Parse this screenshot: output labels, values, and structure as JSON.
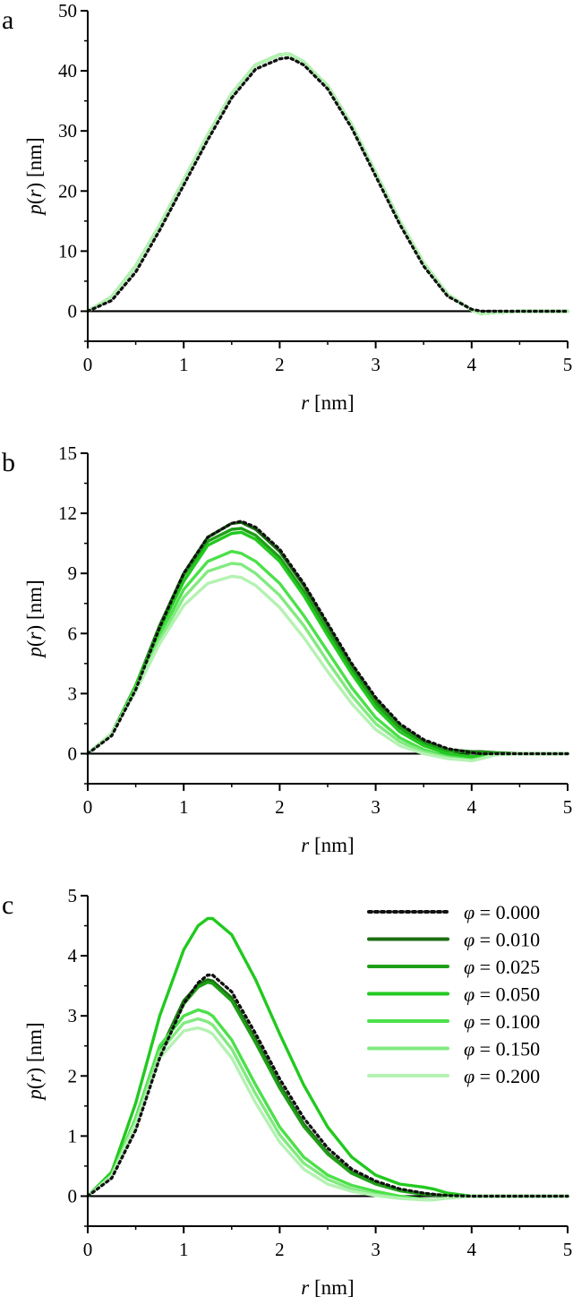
{
  "colors": {
    "phi_0_000": "#111111",
    "phi_0_010": "#1b6e12",
    "phi_0_025": "#1f9e18",
    "phi_0_050": "#22c91f",
    "phi_0_100": "#4ce04a",
    "phi_0_150": "#82ea80",
    "phi_0_200": "#b4f2b2",
    "axis": "#000000"
  },
  "legend": [
    {
      "label": "φ = 0.000",
      "key": "phi_0_000",
      "dashed": true
    },
    {
      "label": "φ = 0.010",
      "key": "phi_0_010",
      "dashed": false
    },
    {
      "label": "φ = 0.025",
      "key": "phi_0_025",
      "dashed": false
    },
    {
      "label": "φ = 0.050",
      "key": "phi_0_050",
      "dashed": false
    },
    {
      "label": "φ = 0.100",
      "key": "phi_0_100",
      "dashed": false
    },
    {
      "label": "φ = 0.150",
      "key": "phi_0_150",
      "dashed": false
    },
    {
      "label": "φ = 0.200",
      "key": "phi_0_200",
      "dashed": false
    }
  ],
  "chart_data": [
    {
      "panel": "a",
      "type": "line",
      "xlabel": "r [nm]",
      "ylabel": "p(r) [nm]",
      "xlim": [
        0,
        5
      ],
      "ylim": [
        -5,
        50
      ],
      "xticks": [
        0,
        1,
        2,
        3,
        4,
        5
      ],
      "yticks": [
        0,
        10,
        20,
        30,
        40,
        50
      ],
      "x": [
        0,
        0.25,
        0.5,
        0.75,
        1,
        1.25,
        1.5,
        1.75,
        2,
        2.1,
        2.25,
        2.5,
        2.75,
        3,
        3.25,
        3.5,
        3.75,
        4,
        4.1,
        4.25,
        4.5,
        4.75,
        5
      ],
      "series": [
        {
          "key": "phi_0_000",
          "values": [
            0,
            1.8,
            6.5,
            13.5,
            21,
            28.5,
            35.5,
            40.3,
            42.0,
            42.2,
            41.0,
            37.0,
            30.5,
            22.5,
            14.5,
            7.5,
            2.5,
            0.3,
            0,
            0,
            0,
            0,
            0
          ]
        },
        {
          "key": "phi_0_010",
          "values": [
            0,
            2.4,
            7.5,
            14.3,
            21.8,
            29.3,
            36.2,
            41.0,
            42.7,
            42.8,
            41.5,
            37.5,
            31.0,
            23.0,
            15.0,
            8.0,
            2.8,
            0.2,
            -0.4,
            -0.2,
            0,
            0,
            0
          ]
        },
        {
          "key": "phi_0_025",
          "values": [
            0,
            2.4,
            7.5,
            14.3,
            21.8,
            29.3,
            36.2,
            41.0,
            42.7,
            42.8,
            41.5,
            37.5,
            31.0,
            23.0,
            15.0,
            8.0,
            2.8,
            0.2,
            -0.4,
            -0.2,
            0,
            0,
            0
          ]
        },
        {
          "key": "phi_0_050",
          "values": [
            0,
            2.4,
            7.5,
            14.3,
            21.8,
            29.3,
            36.2,
            41.0,
            42.7,
            42.8,
            41.5,
            37.5,
            31.0,
            23.0,
            15.0,
            8.0,
            2.8,
            0.2,
            -0.4,
            -0.2,
            0,
            0,
            0
          ]
        },
        {
          "key": "phi_0_100",
          "values": [
            0,
            2.4,
            7.5,
            14.3,
            21.8,
            29.3,
            36.2,
            41.0,
            42.7,
            42.8,
            41.5,
            37.5,
            31.0,
            23.0,
            15.0,
            8.0,
            2.8,
            0.2,
            -0.4,
            -0.2,
            0,
            0,
            0
          ]
        },
        {
          "key": "phi_0_150",
          "values": [
            0,
            2.4,
            7.5,
            14.3,
            21.8,
            29.3,
            36.2,
            41.0,
            42.7,
            42.8,
            41.5,
            37.5,
            31.0,
            23.0,
            15.0,
            8.0,
            2.8,
            0.2,
            -0.4,
            -0.2,
            0,
            0,
            0
          ]
        },
        {
          "key": "phi_0_200",
          "values": [
            0,
            2.4,
            7.5,
            14.3,
            21.8,
            29.3,
            36.2,
            41.0,
            42.7,
            42.8,
            41.5,
            37.5,
            31.0,
            23.0,
            15.0,
            8.0,
            2.8,
            0.2,
            -0.4,
            -0.2,
            0,
            0,
            0
          ]
        }
      ]
    },
    {
      "panel": "b",
      "type": "line",
      "xlabel": "r [nm]",
      "ylabel": "p(r) [nm]",
      "xlim": [
        0,
        5
      ],
      "ylim": [
        -1.5,
        15
      ],
      "xticks": [
        0,
        1,
        2,
        3,
        4,
        5
      ],
      "yticks": [
        0,
        3,
        6,
        9,
        12,
        15
      ],
      "x": [
        0,
        0.25,
        0.5,
        0.75,
        1,
        1.25,
        1.5,
        1.6,
        1.75,
        2,
        2.25,
        2.5,
        2.75,
        3,
        3.25,
        3.5,
        3.75,
        4,
        4.1,
        4.25,
        4.5,
        4.75,
        5
      ],
      "series": [
        {
          "key": "phi_0_000",
          "values": [
            0,
            0.9,
            3.2,
            6.3,
            9.0,
            10.8,
            11.5,
            11.6,
            11.3,
            10.2,
            8.5,
            6.5,
            4.5,
            2.8,
            1.5,
            0.7,
            0.25,
            0.05,
            0,
            0,
            0,
            0,
            0
          ]
        },
        {
          "key": "phi_0_010",
          "values": [
            0,
            1.0,
            3.4,
            6.4,
            9.0,
            10.8,
            11.5,
            11.55,
            11.2,
            10.1,
            8.4,
            6.4,
            4.4,
            2.7,
            1.4,
            0.6,
            0.2,
            0.1,
            0.1,
            0.05,
            0,
            0,
            0
          ]
        },
        {
          "key": "phi_0_025",
          "values": [
            0,
            1.0,
            3.4,
            6.3,
            8.9,
            10.6,
            11.2,
            11.25,
            10.9,
            9.8,
            8.1,
            6.1,
            4.2,
            2.5,
            1.3,
            0.5,
            0.15,
            0.05,
            0.05,
            0.03,
            0,
            0,
            0
          ]
        },
        {
          "key": "phi_0_050",
          "values": [
            0,
            1.0,
            3.4,
            6.2,
            8.6,
            10.4,
            11.0,
            11.05,
            10.7,
            9.6,
            7.9,
            5.9,
            4.0,
            2.3,
            1.1,
            0.4,
            0.0,
            -0.15,
            -0.1,
            -0.03,
            0,
            0,
            0
          ]
        },
        {
          "key": "phi_0_100",
          "values": [
            0,
            1.0,
            3.3,
            5.9,
            8.2,
            9.6,
            10.1,
            10.0,
            9.6,
            8.5,
            6.9,
            5.1,
            3.3,
            1.8,
            0.8,
            0.2,
            -0.15,
            -0.3,
            -0.2,
            -0.05,
            0,
            0,
            0
          ]
        },
        {
          "key": "phi_0_150",
          "values": [
            0,
            1.0,
            3.2,
            5.7,
            7.8,
            9.1,
            9.5,
            9.45,
            9.0,
            7.9,
            6.4,
            4.6,
            2.9,
            1.5,
            0.6,
            0.1,
            -0.2,
            -0.35,
            -0.25,
            -0.05,
            0,
            0,
            0
          ]
        },
        {
          "key": "phi_0_200",
          "values": [
            0,
            1.0,
            3.1,
            5.5,
            7.4,
            8.5,
            8.85,
            8.8,
            8.4,
            7.3,
            5.8,
            4.1,
            2.5,
            1.2,
            0.4,
            0.0,
            -0.25,
            -0.35,
            -0.25,
            -0.05,
            0,
            0,
            0
          ]
        }
      ]
    },
    {
      "panel": "c",
      "type": "line",
      "xlabel": "r [nm]",
      "ylabel": "p(r) [nm]",
      "xlim": [
        0,
        5
      ],
      "ylim": [
        -0.5,
        5
      ],
      "xticks": [
        0,
        1,
        2,
        3,
        4,
        5
      ],
      "yticks": [
        0,
        1,
        2,
        3,
        4,
        5
      ],
      "x": [
        0,
        0.25,
        0.5,
        0.75,
        1,
        1.15,
        1.25,
        1.3,
        1.5,
        1.75,
        2,
        2.25,
        2.5,
        2.75,
        3,
        3.25,
        3.5,
        3.6,
        3.75,
        4,
        4.25,
        4.5,
        4.75,
        5
      ],
      "series": [
        {
          "key": "phi_0_000",
          "values": [
            0,
            0.3,
            1.1,
            2.3,
            3.2,
            3.55,
            3.68,
            3.68,
            3.4,
            2.7,
            1.95,
            1.3,
            0.8,
            0.45,
            0.25,
            0.12,
            0.05,
            0.03,
            0.01,
            0,
            0,
            0,
            0,
            0
          ]
        },
        {
          "key": "phi_0_010",
          "values": [
            0,
            0.35,
            1.25,
            2.4,
            3.25,
            3.52,
            3.6,
            3.58,
            3.3,
            2.6,
            1.85,
            1.2,
            0.72,
            0.4,
            0.22,
            0.1,
            0.04,
            0.02,
            0.01,
            0,
            0,
            0,
            0,
            0
          ]
        },
        {
          "key": "phi_0_025",
          "values": [
            0,
            0.35,
            1.25,
            2.38,
            3.2,
            3.48,
            3.56,
            3.54,
            3.25,
            2.55,
            1.8,
            1.16,
            0.7,
            0.38,
            0.2,
            0.09,
            0.03,
            0.02,
            0.01,
            0,
            0,
            0,
            0,
            0
          ]
        },
        {
          "key": "phi_0_050",
          "values": [
            0,
            0.4,
            1.55,
            3.0,
            4.1,
            4.5,
            4.62,
            4.62,
            4.35,
            3.6,
            2.7,
            1.85,
            1.15,
            0.65,
            0.35,
            0.2,
            0.15,
            0.12,
            0.05,
            0,
            0,
            0,
            0,
            0
          ]
        },
        {
          "key": "phi_0_100",
          "values": [
            0,
            0.35,
            1.3,
            2.5,
            3.0,
            3.1,
            3.05,
            3.0,
            2.6,
            1.85,
            1.15,
            0.65,
            0.35,
            0.18,
            0.08,
            0.0,
            -0.05,
            -0.06,
            -0.03,
            0,
            0,
            0,
            0,
            0
          ]
        },
        {
          "key": "phi_0_150",
          "values": [
            0,
            0.35,
            1.25,
            2.4,
            2.88,
            2.95,
            2.9,
            2.85,
            2.45,
            1.7,
            1.02,
            0.55,
            0.28,
            0.12,
            0.03,
            -0.03,
            -0.06,
            -0.06,
            -0.03,
            0,
            0,
            0,
            0,
            0
          ]
        },
        {
          "key": "phi_0_200",
          "values": [
            0,
            0.33,
            1.2,
            2.3,
            2.75,
            2.8,
            2.75,
            2.7,
            2.3,
            1.55,
            0.9,
            0.45,
            0.2,
            0.08,
            0.01,
            -0.04,
            -0.06,
            -0.06,
            -0.03,
            0,
            0,
            0,
            0,
            0
          ]
        }
      ]
    }
  ]
}
